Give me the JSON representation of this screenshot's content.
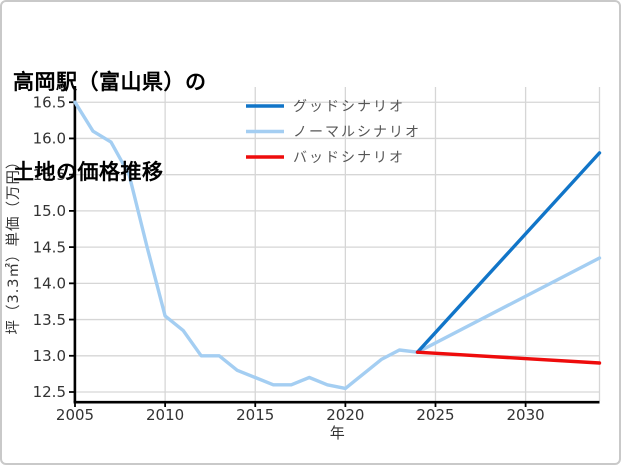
{
  "header": {
    "title_line1": "高岡駅（富山県）の",
    "title_line2": "土地の価格推移"
  },
  "chart_data": {
    "type": "line",
    "title": "高岡駅（富山県）の土地の価格推移",
    "xlabel": "年",
    "ylabel": "坪（3.3㎡）単価（万円）",
    "xlim": [
      2005,
      2034.1
    ],
    "ylim": [
      12.376,
      16.71
    ],
    "x_ticks": [
      2005,
      2010,
      2015,
      2020,
      2025,
      2030
    ],
    "x_tick_labels": [
      "2005",
      "2010",
      "2015",
      "2020",
      "2025",
      "2030"
    ],
    "y_ticks": [
      12.5,
      13.0,
      13.5,
      14.0,
      14.5,
      15.0,
      15.5,
      16.0,
      16.5
    ],
    "y_tick_labels": [
      "12.5",
      "13.0",
      "13.5",
      "14.0",
      "14.5",
      "15.0",
      "15.5",
      "16.0",
      "16.5"
    ],
    "grid": true,
    "series": [
      {
        "name": "history",
        "label": null,
        "color": "#a4cef2",
        "x": [
          2005,
          2006,
          2007,
          2008,
          2009,
          2010,
          2011,
          2012,
          2013,
          2014,
          2015,
          2016,
          2017,
          2018,
          2019,
          2020,
          2021,
          2022,
          2023,
          2024
        ],
        "values": [
          16.5,
          16.1,
          15.95,
          15.5,
          14.5,
          13.55,
          13.35,
          13.0,
          13.0,
          12.8,
          12.7,
          12.6,
          12.6,
          12.7,
          12.6,
          12.55,
          12.75,
          12.95,
          13.08,
          13.05
        ]
      },
      {
        "name": "normal-scenario",
        "label": "ノーマルシナリオ",
        "color": "#a4cef2",
        "x": [
          2024,
          2034.1
        ],
        "values": [
          13.05,
          14.35
        ]
      },
      {
        "name": "good-scenario",
        "label": "グッドシナリオ",
        "color": "#1175c8",
        "x": [
          2024,
          2034.1
        ],
        "values": [
          13.05,
          15.8
        ]
      },
      {
        "name": "bad-scenario",
        "label": "バッドシナリオ",
        "color": "#ee0c0c",
        "x": [
          2024,
          2034.1
        ],
        "values": [
          13.05,
          12.9
        ]
      }
    ],
    "legend": {
      "position": "upper center",
      "entries": [
        {
          "label": "グッドシナリオ",
          "color": "#1175c8"
        },
        {
          "label": "ノーマルシナリオ",
          "color": "#a4cef2"
        },
        {
          "label": "バッドシナリオ",
          "color": "#ee0c0c"
        }
      ]
    },
    "colors": {
      "grid": "#d6d6d6",
      "spine": "#000000",
      "tick_label": "#333333",
      "axis_label": "#333333",
      "legend_text": "#555555"
    }
  }
}
